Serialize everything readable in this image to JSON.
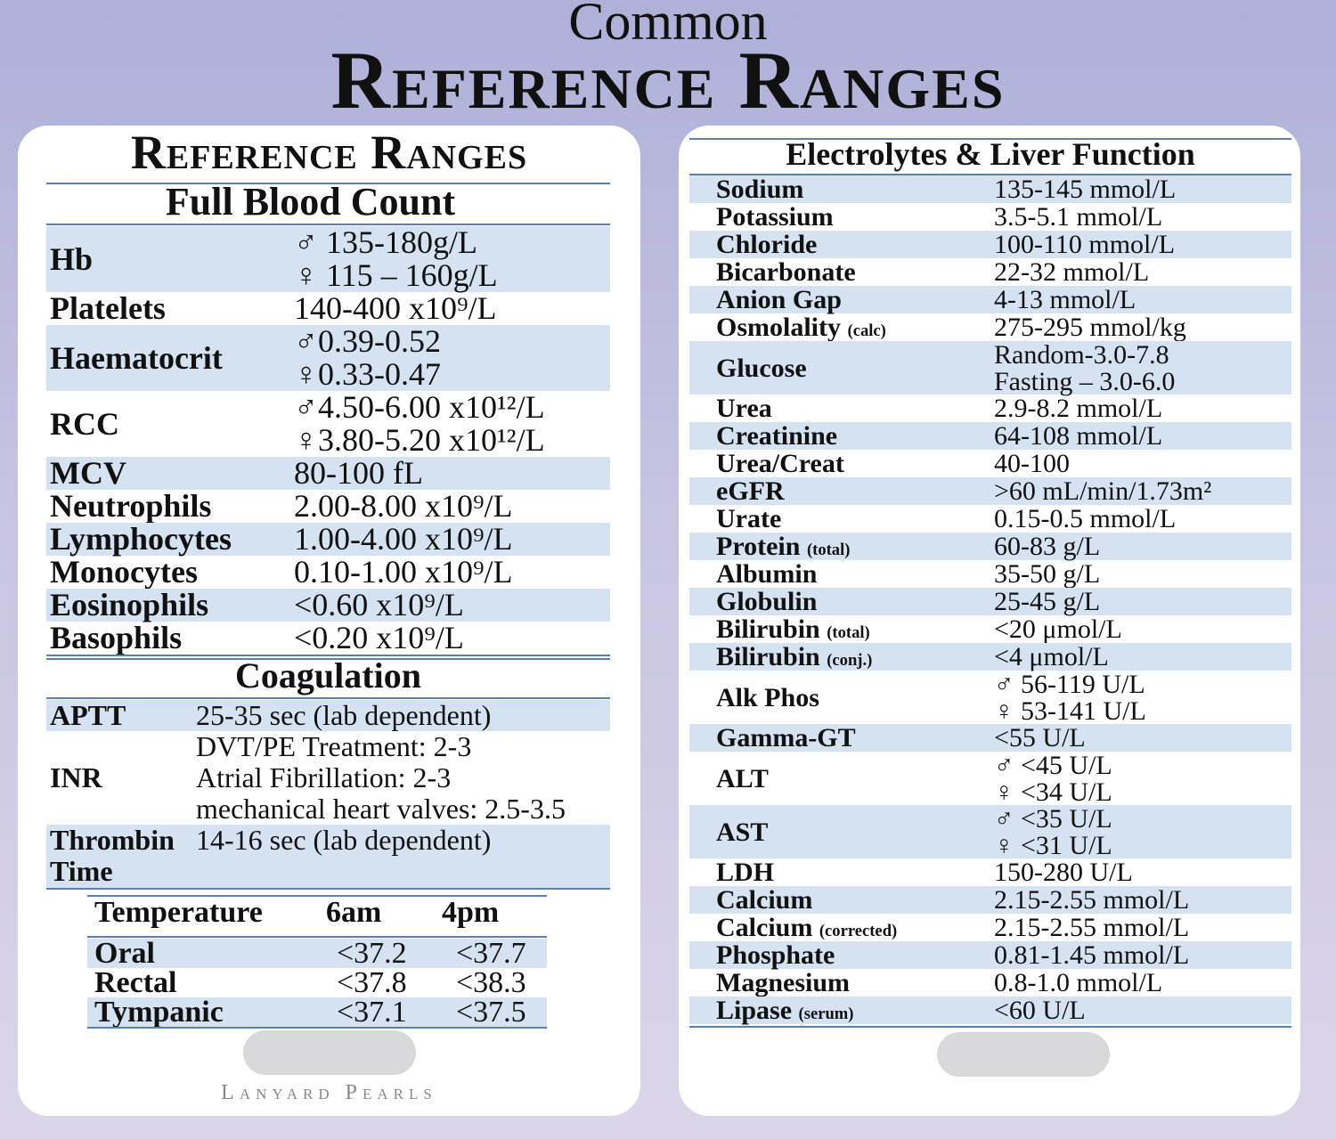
{
  "header": {
    "common": "Common",
    "title": "Reference Ranges"
  },
  "left_card": {
    "title": "Reference Ranges",
    "fbc_heading": "Full Blood Count",
    "fbc_rows": [
      {
        "label": "Hb",
        "values": [
          "♂ 135-180g/L",
          "♀ 115 – 160g/L"
        ]
      },
      {
        "label": "Platelets",
        "values": [
          "140-400 x10⁹/L"
        ]
      },
      {
        "label": "Haematocrit",
        "values": [
          "♂0.39-0.52",
          "♀0.33-0.47"
        ]
      },
      {
        "label": "RCC",
        "values": [
          "♂4.50-6.00 x10¹²/L",
          "♀3.80-5.20 x10¹²/L"
        ]
      },
      {
        "label": "MCV",
        "values": [
          "80-100 fL"
        ]
      },
      {
        "label": "Neutrophils",
        "values": [
          "2.00-8.00 x10⁹/L"
        ]
      },
      {
        "label": "Lymphocytes",
        "values": [
          "1.00-4.00 x10⁹/L"
        ]
      },
      {
        "label": "Monocytes",
        "values": [
          "0.10-1.00 x10⁹/L"
        ]
      },
      {
        "label": "Eosinophils",
        "values": [
          "<0.60 x10⁹/L"
        ]
      },
      {
        "label": "Basophils",
        "values": [
          "<0.20 x10⁹/L"
        ]
      }
    ],
    "coag_heading": "Coagulation",
    "coag_rows": [
      {
        "label": "APTT",
        "values": [
          "25-35 sec (lab dependent)"
        ]
      },
      {
        "label": "INR",
        "values": [
          "DVT/PE Treatment: 2-3",
          "Atrial Fibrillation: 2-3",
          "mechanical heart valves: 2.5-3.5"
        ]
      },
      {
        "label": "Thrombin Time",
        "label_lines": [
          "Thrombin",
          "Time"
        ],
        "values": [
          "14-16 sec (lab dependent)"
        ]
      }
    ],
    "temperature": {
      "headers": [
        "Temperature",
        "6am",
        "4pm"
      ],
      "rows": [
        {
          "label": "Oral",
          "am": "<37.2",
          "pm": "<37.7"
        },
        {
          "label": "Rectal",
          "am": "<37.8",
          "pm": "<38.3"
        },
        {
          "label": "Tympanic",
          "am": "<37.1",
          "pm": "<37.5"
        }
      ]
    },
    "brand": "Lanyard Pearls"
  },
  "right_card": {
    "heading": "Electrolytes & Liver Function",
    "rows": [
      {
        "label": "Sodium",
        "values": [
          "135-145 mmol/L"
        ]
      },
      {
        "label": "Potassium",
        "values": [
          "3.5-5.1 mmol/L"
        ]
      },
      {
        "label": "Chloride",
        "values": [
          "100-110 mmol/L"
        ]
      },
      {
        "label": "Bicarbonate",
        "values": [
          "22-32 mmol/L"
        ]
      },
      {
        "label": "Anion Gap",
        "values": [
          "4-13 mmol/L"
        ]
      },
      {
        "label": "Osmolality",
        "qualifier": "(calc)",
        "values": [
          "275-295 mmol/kg"
        ]
      },
      {
        "label": "Glucose",
        "values": [
          "Random-3.0-7.8",
          "Fasting – 3.0-6.0"
        ]
      },
      {
        "label": "Urea",
        "values": [
          "2.9-8.2 mmol/L"
        ]
      },
      {
        "label": "Creatinine",
        "values": [
          "64-108 mmol/L"
        ]
      },
      {
        "label": "Urea/Creat",
        "values": [
          "40-100"
        ]
      },
      {
        "label": "eGFR",
        "values": [
          ">60 mL/min/1.73m²"
        ]
      },
      {
        "label": "Urate",
        "values": [
          "0.15-0.5 mmol/L"
        ]
      },
      {
        "label": "Protein",
        "qualifier": "(total)",
        "values": [
          "60-83 g/L"
        ]
      },
      {
        "label": "Albumin",
        "values": [
          "35-50 g/L"
        ]
      },
      {
        "label": "Globulin",
        "values": [
          "25-45 g/L"
        ]
      },
      {
        "label": "Bilirubin",
        "qualifier": "(total)",
        "values": [
          "<20 μmol/L"
        ]
      },
      {
        "label": "Bilirubin",
        "qualifier": "(conj.)",
        "values": [
          "<4 μmol/L"
        ]
      },
      {
        "label": "Alk Phos",
        "values": [
          "♂ 56-119 U/L",
          "♀ 53-141 U/L"
        ]
      },
      {
        "label": "Gamma-GT",
        "values": [
          "<55 U/L"
        ]
      },
      {
        "label": "ALT",
        "values": [
          "♂ <45 U/L",
          "♀ <34 U/L"
        ]
      },
      {
        "label": "AST",
        "values": [
          "♂ <35 U/L",
          "♀ <31 U/L"
        ]
      },
      {
        "label": "LDH",
        "values": [
          "150-280 U/L"
        ]
      },
      {
        "label": "Calcium",
        "values": [
          "2.15-2.55 mmol/L"
        ]
      },
      {
        "label": "Calcium",
        "qualifier": "(corrected)",
        "values": [
          "2.15-2.55 mmol/L"
        ]
      },
      {
        "label": "Phosphate",
        "values": [
          "0.81-1.45 mmol/L"
        ]
      },
      {
        "label": "Magnesium",
        "values": [
          "0.8-1.0 mmol/L"
        ]
      },
      {
        "label": "Lipase",
        "qualifier": "(serum)",
        "values": [
          "<60 U/L"
        ]
      }
    ]
  }
}
